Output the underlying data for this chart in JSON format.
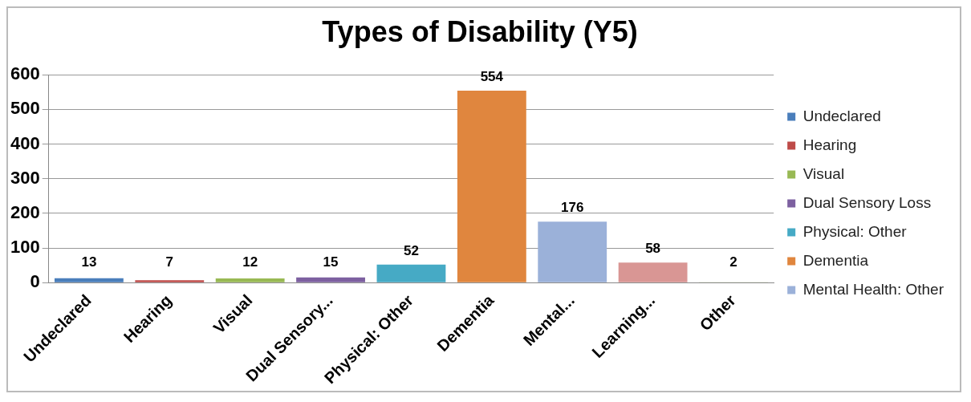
{
  "chart_data": {
    "type": "bar",
    "title": "Types of Disability (Y5)",
    "categories": [
      "Undeclared",
      "Hearing",
      "Visual",
      "Dual Sensory...",
      "Physical: Other",
      "Dementia",
      "Mental...",
      "Learning...",
      "Other"
    ],
    "series": [
      {
        "name": "Undeclared",
        "color": "#4a7ebb",
        "values": [
          13,
          null,
          null,
          null,
          null,
          null,
          null,
          null,
          null
        ]
      },
      {
        "name": "Hearing",
        "color": "#be4b48",
        "values": [
          null,
          7,
          null,
          null,
          null,
          null,
          null,
          null,
          null
        ]
      },
      {
        "name": "Visual",
        "color": "#98b954",
        "values": [
          null,
          null,
          12,
          null,
          null,
          null,
          null,
          null,
          null
        ]
      },
      {
        "name": "Dual Sensory Loss",
        "color": "#7d60a0",
        "values": [
          null,
          null,
          null,
          15,
          null,
          null,
          null,
          null,
          null
        ]
      },
      {
        "name": "Physical: Other",
        "color": "#46aac5",
        "values": [
          null,
          null,
          null,
          null,
          52,
          null,
          null,
          null,
          null
        ]
      },
      {
        "name": "Dementia",
        "color": "#e0863e",
        "values": [
          null,
          null,
          null,
          null,
          null,
          554,
          null,
          null,
          null
        ]
      },
      {
        "name": "Mental Health: Other",
        "color": "#9bb1d9",
        "values": [
          null,
          null,
          null,
          null,
          null,
          null,
          176,
          null,
          null
        ]
      },
      {
        "color": "#d99694",
        "values": [
          null,
          null,
          null,
          null,
          null,
          null,
          null,
          58,
          null
        ]
      },
      {
        "color": "#b9cd96",
        "values": [
          null,
          null,
          null,
          null,
          null,
          null,
          null,
          null,
          2
        ]
      }
    ],
    "ylim": [
      0,
      600
    ],
    "yticks": [
      0,
      100,
      200,
      300,
      400,
      500,
      600
    ],
    "grid": "y",
    "legend": "right",
    "data_labels": true
  }
}
